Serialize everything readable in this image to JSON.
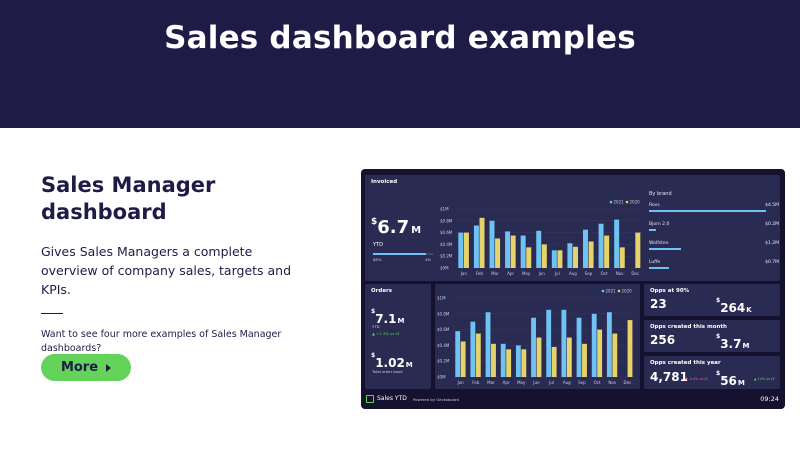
{
  "hero": {
    "title": "Sales dashboard examples"
  },
  "intro": {
    "heading": "Sales Manager dashboard",
    "description": "Gives Sales Managers a complete overview of company sales, targets and KPIs.",
    "more_text": "Want to see four more examples of Sales Manager dashboards?",
    "button_label": "More"
  },
  "colors": {
    "hero_bg": "#1e1c47",
    "accent_green": "#63d35a",
    "series_2021": "#6ec3f4",
    "series_2020": "#e6d36a"
  },
  "dashboard": {
    "invoiced": {
      "title": "Invoiced",
      "value_prefix": "$",
      "value": "6.7",
      "value_suffix": "M",
      "sub": "YTD",
      "progress": 0.88,
      "progress_left": "88%",
      "progress_right": "4%"
    },
    "orders": {
      "title": "Orders",
      "value1_prefix": "$",
      "value1": "7.1",
      "value1_suffix": "M",
      "value1_sub": "YTD",
      "value1_delta": "▲ +1.3% vs LY",
      "value2_prefix": "$",
      "value2": "1.02",
      "value2_suffix": "M",
      "value2_sub": "Total order book"
    },
    "by_brand": {
      "title": "By brand",
      "rows": [
        {
          "name": "Rovs",
          "value": "$4.5M",
          "fraction": 0.9
        },
        {
          "name": "Bjorn 2.0",
          "value": "$0.2M",
          "fraction": 0.05
        },
        {
          "name": "Wolfsten",
          "value": "$1.2M",
          "fraction": 0.25
        },
        {
          "name": "Luffe",
          "value": "$0.7M",
          "fraction": 0.15
        }
      ]
    },
    "opps90": {
      "title": "Opps at 90%",
      "count": "23",
      "value_prefix": "$",
      "value": "264",
      "value_suffix": "K"
    },
    "opps_month": {
      "title": "Opps created this month",
      "count": "256",
      "value_prefix": "$",
      "value": "3.7",
      "value_suffix": "M"
    },
    "opps_year": {
      "title": "Opps created this year",
      "count": "4,781",
      "count_delta": "▼ -3.4% vs LY",
      "value_prefix": "$",
      "value": "56",
      "value_suffix": "M",
      "value_delta": "▲ 14% vs LY"
    },
    "footer": {
      "name": "Sales YTD",
      "powered": "Powered by Geckoboard",
      "time": "09:24"
    }
  },
  "chart_data": [
    {
      "type": "bar",
      "categories": [
        "Jan",
        "Feb",
        "Mar",
        "Apr",
        "May",
        "Jun",
        "Jul",
        "Aug",
        "Sep",
        "Oct",
        "Nov",
        "Dec"
      ],
      "ytick_labels": [
        "$0M",
        "$0.2M",
        "$0.4M",
        "$0.6M",
        "$0.8M",
        "$1M"
      ],
      "ylim": [
        0,
        1
      ],
      "legend": "top-right",
      "series": [
        {
          "name": "2021",
          "color": "#6ec3f4",
          "values": [
            0.6,
            0.72,
            0.8,
            0.62,
            0.55,
            0.63,
            0.3,
            0.42,
            0.65,
            0.75,
            0.82,
            null
          ]
        },
        {
          "name": "2020",
          "color": "#e6d36a",
          "values": [
            0.6,
            0.85,
            0.5,
            0.55,
            0.35,
            0.4,
            0.3,
            0.36,
            0.45,
            0.55,
            0.35,
            0.6
          ]
        }
      ]
    },
    {
      "type": "bar",
      "categories": [
        "Jan",
        "Feb",
        "Mar",
        "Apr",
        "May",
        "Jun",
        "Jul",
        "Aug",
        "Sep",
        "Oct",
        "Nov",
        "Dec"
      ],
      "ytick_labels": [
        "$0M",
        "$0.2M",
        "$0.4M",
        "$0.6M",
        "$0.8M",
        "$1M"
      ],
      "ylim": [
        0,
        1
      ],
      "legend": "top-right",
      "series": [
        {
          "name": "2021",
          "color": "#6ec3f4",
          "values": [
            0.58,
            0.7,
            0.82,
            0.42,
            0.4,
            0.75,
            0.85,
            0.85,
            0.75,
            0.8,
            0.82,
            null
          ]
        },
        {
          "name": "2020",
          "color": "#e6d36a",
          "values": [
            0.45,
            0.55,
            0.42,
            0.35,
            0.35,
            0.5,
            0.38,
            0.5,
            0.42,
            0.6,
            0.55,
            0.72
          ]
        }
      ]
    }
  ]
}
